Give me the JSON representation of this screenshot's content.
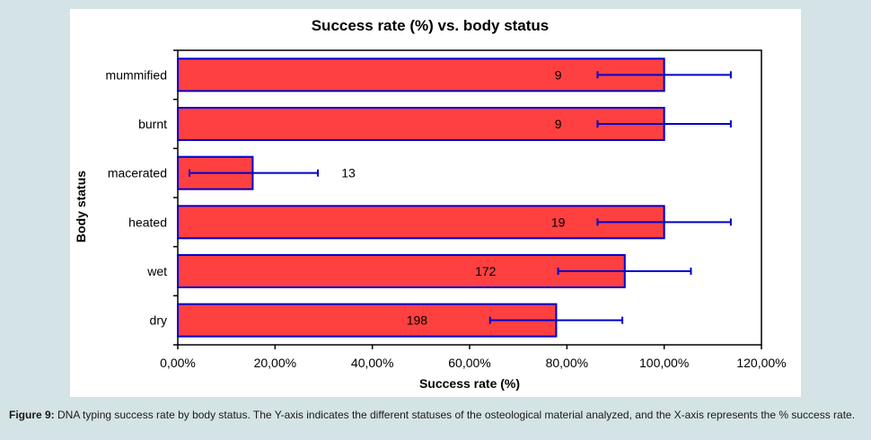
{
  "chart_data": {
    "type": "bar",
    "orientation": "horizontal",
    "title": "Success rate (%) vs. body status",
    "xlabel": "Success rate (%)",
    "ylabel": "Body status",
    "xlim": [
      0,
      120
    ],
    "x_ticks": [
      "0,00%",
      "20,00%",
      "40,00%",
      "60,00%",
      "80,00%",
      "100,00%",
      "120,00%"
    ],
    "x_tick_values": [
      0,
      20,
      40,
      60,
      80,
      100,
      120
    ],
    "categories": [
      "mummified",
      "burnt",
      "macerated",
      "heated",
      "wet",
      "dry"
    ],
    "values": [
      100,
      100,
      15.4,
      100,
      91.9,
      77.8
    ],
    "error_low": [
      86.3,
      86.3,
      2.4,
      86.3,
      78.2,
      64.2
    ],
    "error_high": [
      113.7,
      113.7,
      28.8,
      113.7,
      105.5,
      91.4
    ],
    "data_labels": [
      "9",
      "9",
      "13",
      "19",
      "172",
      "198"
    ],
    "colors": {
      "bar_fill": "#ff4040",
      "bar_stroke": "#0000cc",
      "error_bar": "#0000cc"
    },
    "grid": false
  },
  "caption": {
    "label": "Figure 9:",
    "text": "DNA typing success rate by body status. The Y-axis indicates the different statuses of the osteological material analyzed, and the X-axis represents the % success rate."
  }
}
